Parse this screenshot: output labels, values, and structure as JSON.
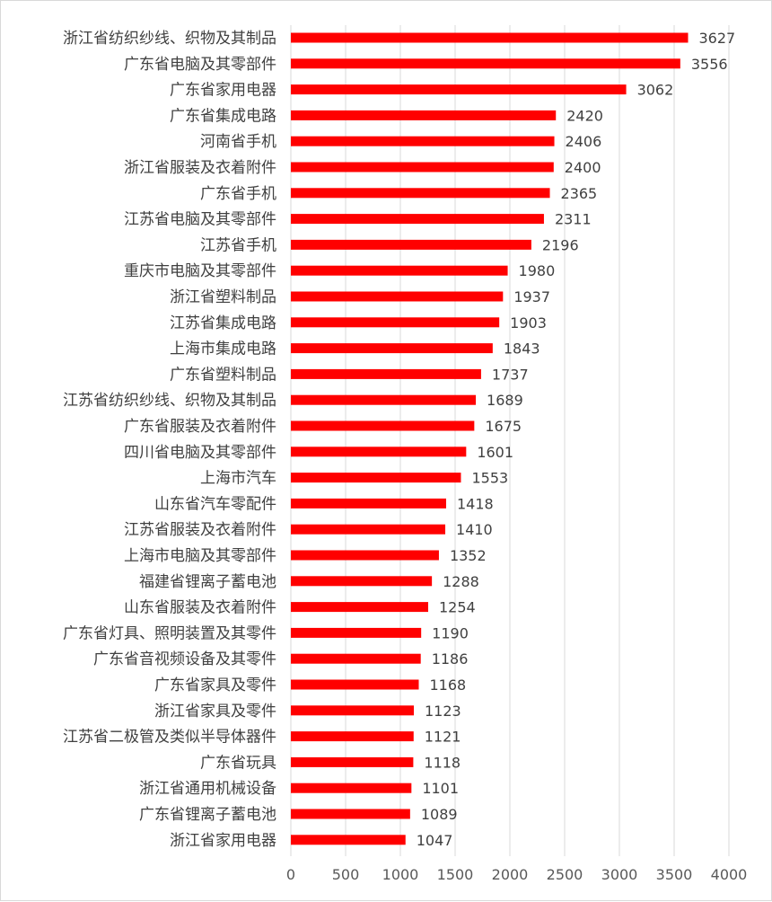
{
  "chart_data": {
    "type": "bar",
    "orientation": "horizontal",
    "title": "",
    "xlabel": "",
    "ylabel": "",
    "xlim": [
      0,
      4000
    ],
    "x_ticks": [
      0,
      500,
      1000,
      1500,
      2000,
      2500,
      3000,
      3500,
      4000
    ],
    "grid": true,
    "legend": "none",
    "bar_color": "#ff0000",
    "categories": [
      "浙江省纺织纱线、织物及其制品",
      "广东省电脑及其零部件",
      "广东省家用电器",
      "广东省集成电路",
      "河南省手机",
      "浙江省服装及衣着附件",
      "广东省手机",
      "江苏省电脑及其零部件",
      "江苏省手机",
      "重庆市电脑及其零部件",
      "浙江省塑料制品",
      "江苏省集成电路",
      "上海市集成电路",
      "广东省塑料制品",
      "江苏省纺织纱线、织物及其制品",
      "广东省服装及衣着附件",
      "四川省电脑及其零部件",
      "上海市汽车",
      "山东省汽车零配件",
      "江苏省服装及衣着附件",
      "上海市电脑及其零部件",
      "福建省锂离子蓄电池",
      "山东省服装及衣着附件",
      "广东省灯具、照明装置及其零件",
      "广东省音视频设备及其零件",
      "广东省家具及零件",
      "浙江省家具及零件",
      "江苏省二极管及类似半导体器件",
      "广东省玩具",
      "浙江省通用机械设备",
      "广东省锂离子蓄电池",
      "浙江省家用电器"
    ],
    "values": [
      3627,
      3556,
      3062,
      2420,
      2406,
      2400,
      2365,
      2311,
      2196,
      1980,
      1937,
      1903,
      1843,
      1737,
      1689,
      1675,
      1601,
      1553,
      1418,
      1410,
      1352,
      1288,
      1254,
      1190,
      1186,
      1168,
      1123,
      1121,
      1118,
      1101,
      1089,
      1047
    ]
  }
}
